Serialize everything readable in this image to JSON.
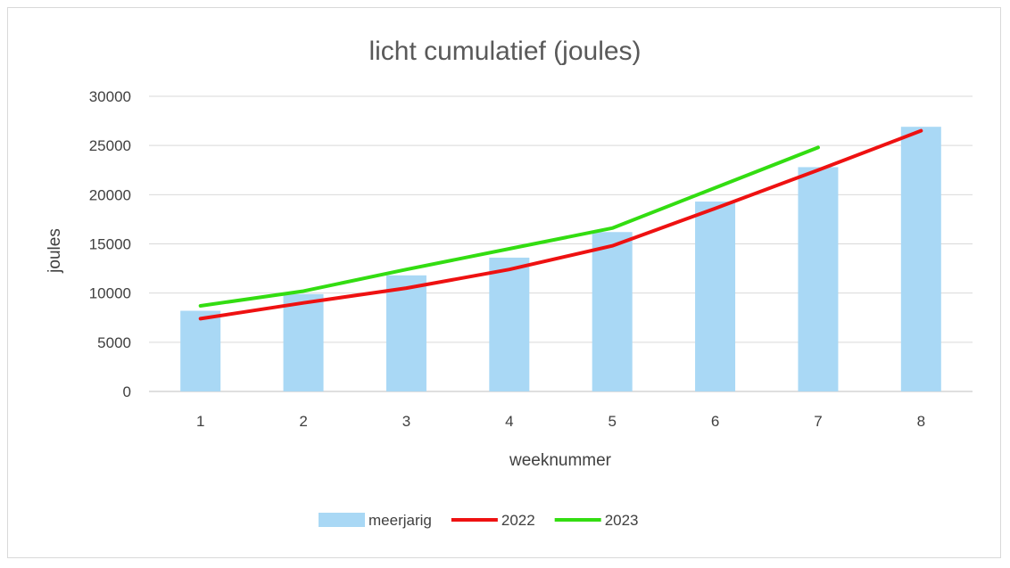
{
  "chart_data": {
    "type": "bar",
    "title": "licht cumulatief (joules)",
    "xlabel": "weeknummer",
    "ylabel": "joules",
    "categories": [
      "1",
      "2",
      "3",
      "4",
      "5",
      "6",
      "7",
      "8"
    ],
    "ylim": [
      0,
      30000
    ],
    "yticks": [
      "0",
      "5000",
      "10000",
      "15000",
      "20000",
      "25000",
      "30000"
    ],
    "grid": true,
    "legend_position": "bottom",
    "series": [
      {
        "name": "meerjarig",
        "kind": "bar",
        "color": "#a9d8f5",
        "values": [
          8200,
          9900,
          11800,
          13600,
          16200,
          19300,
          22800,
          26900
        ]
      },
      {
        "name": "2022",
        "kind": "line",
        "color": "#ee1111",
        "values": [
          7400,
          9000,
          10500,
          12400,
          14800,
          18600,
          22500,
          26500
        ]
      },
      {
        "name": "2023",
        "kind": "line",
        "color": "#33dd11",
        "values": [
          8700,
          10200,
          12400,
          14500,
          16600,
          20700,
          24800,
          null
        ]
      }
    ]
  }
}
